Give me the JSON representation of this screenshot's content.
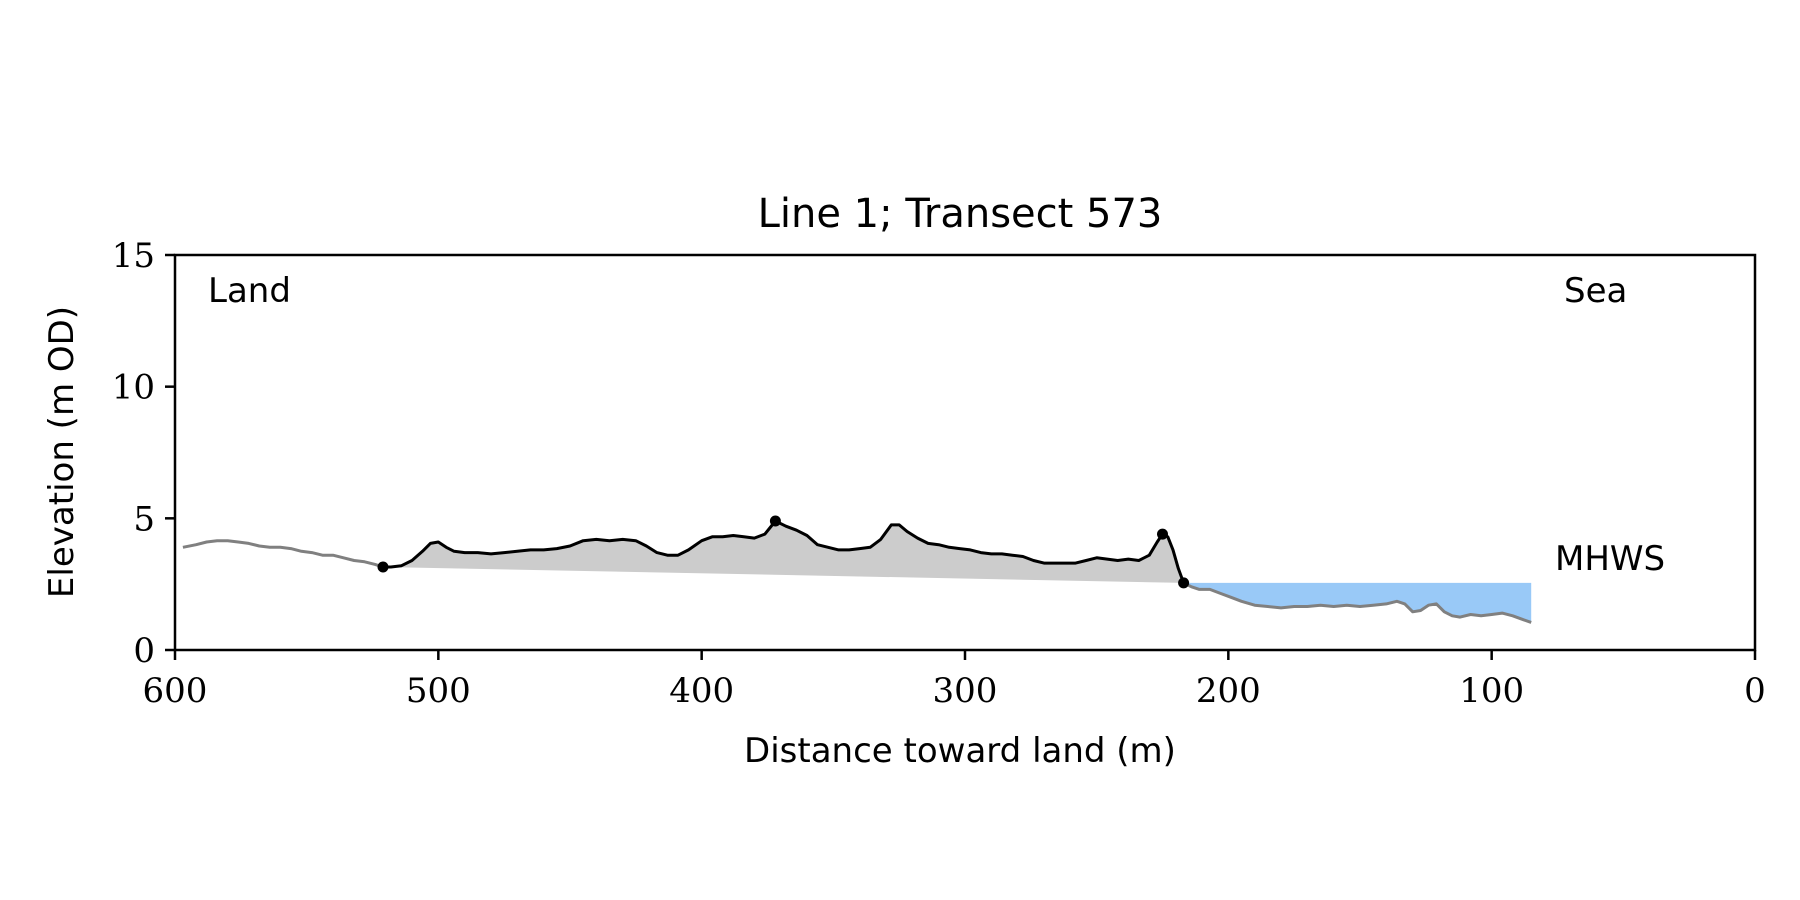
{
  "chart_data": {
    "type": "area",
    "title": "Line 1; Transect 573",
    "xlabel": "Distance toward land (m)",
    "ylabel": "Elevation (m OD)",
    "xlim": [
      600,
      0
    ],
    "ylim": [
      0,
      15
    ],
    "x_ticks": [
      "600",
      "500",
      "400",
      "300",
      "200",
      "100",
      "0"
    ],
    "y_ticks": [
      "0",
      "5",
      "10",
      "15"
    ],
    "grid": false,
    "annotations": {
      "land": "Land",
      "sea": "Sea",
      "mhws": "MHWS"
    },
    "mhws_level": 2.55,
    "colors": {
      "profile_outside": "#808080",
      "profile_dune": "#000000",
      "dune_fill": "#cccccc",
      "water_fill": "#99c9f7",
      "mhws_label": "#5b8fc4"
    },
    "dune_points": [
      {
        "x": 521,
        "y": 3.15
      },
      {
        "x": 372,
        "y": 4.9
      },
      {
        "x": 225,
        "y": 4.4
      },
      {
        "x": 217,
        "y": 2.55
      }
    ],
    "profile": [
      [
        597,
        3.9
      ],
      [
        592,
        4.0
      ],
      [
        588,
        4.1
      ],
      [
        584,
        4.15
      ],
      [
        580,
        4.15
      ],
      [
        576,
        4.1
      ],
      [
        572,
        4.05
      ],
      [
        568,
        3.95
      ],
      [
        564,
        3.9
      ],
      [
        560,
        3.9
      ],
      [
        556,
        3.85
      ],
      [
        552,
        3.75
      ],
      [
        548,
        3.7
      ],
      [
        544,
        3.6
      ],
      [
        540,
        3.6
      ],
      [
        536,
        3.5
      ],
      [
        532,
        3.4
      ],
      [
        528,
        3.35
      ],
      [
        524,
        3.25
      ],
      [
        521,
        3.15
      ],
      [
        518,
        3.15
      ],
      [
        514,
        3.2
      ],
      [
        510,
        3.4
      ],
      [
        506,
        3.75
      ],
      [
        503,
        4.05
      ],
      [
        500,
        4.1
      ],
      [
        497,
        3.9
      ],
      [
        494,
        3.75
      ],
      [
        490,
        3.7
      ],
      [
        485,
        3.7
      ],
      [
        480,
        3.65
      ],
      [
        475,
        3.7
      ],
      [
        470,
        3.75
      ],
      [
        465,
        3.8
      ],
      [
        460,
        3.8
      ],
      [
        455,
        3.85
      ],
      [
        450,
        3.95
      ],
      [
        445,
        4.15
      ],
      [
        440,
        4.2
      ],
      [
        435,
        4.15
      ],
      [
        430,
        4.2
      ],
      [
        425,
        4.15
      ],
      [
        421,
        3.95
      ],
      [
        417,
        3.7
      ],
      [
        413,
        3.6
      ],
      [
        409,
        3.6
      ],
      [
        405,
        3.8
      ],
      [
        400,
        4.15
      ],
      [
        396,
        4.3
      ],
      [
        392,
        4.3
      ],
      [
        388,
        4.35
      ],
      [
        384,
        4.3
      ],
      [
        380,
        4.25
      ],
      [
        376,
        4.4
      ],
      [
        372,
        4.9
      ],
      [
        368,
        4.7
      ],
      [
        364,
        4.55
      ],
      [
        360,
        4.35
      ],
      [
        356,
        4.0
      ],
      [
        352,
        3.9
      ],
      [
        348,
        3.8
      ],
      [
        344,
        3.8
      ],
      [
        340,
        3.85
      ],
      [
        336,
        3.9
      ],
      [
        332,
        4.2
      ],
      [
        328,
        4.75
      ],
      [
        325,
        4.75
      ],
      [
        322,
        4.5
      ],
      [
        318,
        4.25
      ],
      [
        314,
        4.05
      ],
      [
        310,
        4.0
      ],
      [
        306,
        3.9
      ],
      [
        302,
        3.85
      ],
      [
        298,
        3.8
      ],
      [
        294,
        3.7
      ],
      [
        290,
        3.65
      ],
      [
        286,
        3.65
      ],
      [
        282,
        3.6
      ],
      [
        278,
        3.55
      ],
      [
        274,
        3.4
      ],
      [
        270,
        3.3
      ],
      [
        266,
        3.3
      ],
      [
        262,
        3.3
      ],
      [
        258,
        3.3
      ],
      [
        254,
        3.4
      ],
      [
        250,
        3.5
      ],
      [
        246,
        3.45
      ],
      [
        242,
        3.4
      ],
      [
        238,
        3.45
      ],
      [
        234,
        3.4
      ],
      [
        230,
        3.6
      ],
      [
        227,
        4.1
      ],
      [
        225,
        4.4
      ],
      [
        223,
        4.3
      ],
      [
        221,
        3.8
      ],
      [
        219,
        3.1
      ],
      [
        217,
        2.55
      ],
      [
        214,
        2.4
      ],
      [
        211,
        2.3
      ],
      [
        207,
        2.3
      ],
      [
        203,
        2.15
      ],
      [
        199,
        2.0
      ],
      [
        195,
        1.85
      ],
      [
        190,
        1.7
      ],
      [
        185,
        1.65
      ],
      [
        180,
        1.6
      ],
      [
        175,
        1.65
      ],
      [
        170,
        1.65
      ],
      [
        165,
        1.7
      ],
      [
        160,
        1.65
      ],
      [
        155,
        1.7
      ],
      [
        150,
        1.65
      ],
      [
        145,
        1.7
      ],
      [
        140,
        1.75
      ],
      [
        136,
        1.85
      ],
      [
        133,
        1.75
      ],
      [
        130,
        1.45
      ],
      [
        127,
        1.5
      ],
      [
        124,
        1.7
      ],
      [
        121,
        1.75
      ],
      [
        118,
        1.45
      ],
      [
        115,
        1.3
      ],
      [
        112,
        1.25
      ],
      [
        108,
        1.35
      ],
      [
        104,
        1.3
      ],
      [
        100,
        1.35
      ],
      [
        96,
        1.4
      ],
      [
        92,
        1.3
      ],
      [
        88,
        1.15
      ],
      [
        85,
        1.05
      ]
    ]
  }
}
